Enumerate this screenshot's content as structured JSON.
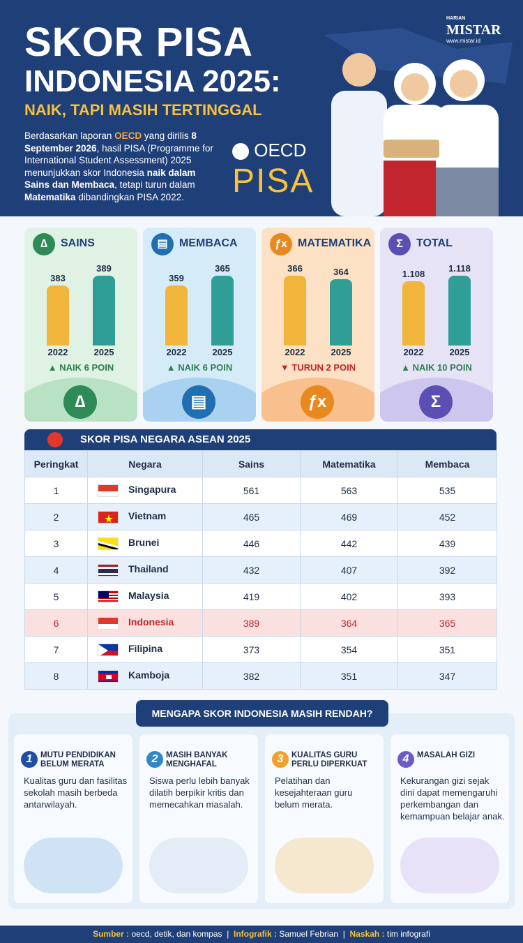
{
  "header": {
    "brand_small": "HARIAN",
    "brand": "MISTAR",
    "url": "www.mistar.id",
    "title_line1": "SKOR PISA",
    "title_line2": "INDONESIA 2025:",
    "subtitle": "NAIK, TAPI MASIH TERTINGGAL",
    "intro": [
      "Berdasarkan laporan ",
      "OECD",
      " yang dirilis ",
      "8 September 2026",
      ", hasil PISA (Programme for International Student Assessment) 2025 menunjukkan skor Indonesia ",
      "naik dalam Sains dan Membaca",
      ", tetapi turun dalam ",
      "Matematika",
      " dibandingkan PISA 2022."
    ],
    "logo_oecd": "OECD",
    "logo_pisa": "PISA"
  },
  "panels": [
    {
      "title": "SAINS",
      "years": [
        "2022",
        "2025"
      ],
      "values": [
        383,
        389
      ],
      "change": "NAIK 6 POIN",
      "direction": "up"
    },
    {
      "title": "MEMBACA",
      "years": [
        "2022",
        "2025"
      ],
      "values": [
        359,
        365
      ],
      "change": "NAIK 6 POIN",
      "direction": "up"
    },
    {
      "title": "MATEMATIKA",
      "years": [
        "2022",
        "2025"
      ],
      "values": [
        366,
        364
      ],
      "change": "TURUN 2 POIN",
      "direction": "down"
    },
    {
      "title": "TOTAL",
      "years": [
        "2022",
        "2025"
      ],
      "values": [
        1108,
        1118
      ],
      "value_labels": [
        "1.108",
        "1.118"
      ],
      "change": "NAIK 10 POIN",
      "direction": "up"
    }
  ],
  "table": {
    "title": "SKOR PISA NEGARA ASEAN 2025",
    "columns": [
      "Peringkat",
      "Negara",
      "Sains",
      "Matematika",
      "Membaca"
    ],
    "rows": [
      [
        "1",
        "Singapura",
        "561",
        "563",
        "535"
      ],
      [
        "2",
        "Vietnam",
        "465",
        "469",
        "452"
      ],
      [
        "3",
        "Brunei",
        "446",
        "442",
        "439"
      ],
      [
        "4",
        "Thailand",
        "432",
        "407",
        "392"
      ],
      [
        "5",
        "Malaysia",
        "419",
        "402",
        "393"
      ],
      [
        "6",
        "Indonesia",
        "389",
        "364",
        "365"
      ],
      [
        "7",
        "Filipina",
        "373",
        "354",
        "351"
      ],
      [
        "8",
        "Kamboja",
        "382",
        "351",
        "347"
      ]
    ]
  },
  "reasons": {
    "title": "MENGAPA SKOR INDONESIA MASIH RENDAH?",
    "cards": [
      {
        "number": "1",
        "title": "MUTU PENDIDIKAN BELUM MERATA",
        "text": "Kualitas guru dan fasilitas sekolah masih berbeda antarwilayah."
      },
      {
        "number": "2",
        "title": "MASIH BANYAK MENGHAFAL",
        "text": "Siswa perlu lebih banyak dilatih berpikir kritis dan memecahkan masalah."
      },
      {
        "number": "3",
        "title": "KUALITAS GURU PERLU DIPERKUAT",
        "text": "Pelatihan dan kesejahteraan guru belum merata."
      },
      {
        "number": "4",
        "title": "MASALAH GIZI",
        "text": "Kekurangan gizi sejak dini dapat memengaruhi perkembangan dan kemampuan belajar anak."
      }
    ]
  },
  "footer": {
    "source_label": "Sumber :",
    "source": "oecd, detik, dan kompas",
    "sep": "|",
    "graphic_label": "Infografik :",
    "graphic": "Samuel Febrian",
    "text_label": "Naskah :",
    "text": "tim infografi"
  }
}
